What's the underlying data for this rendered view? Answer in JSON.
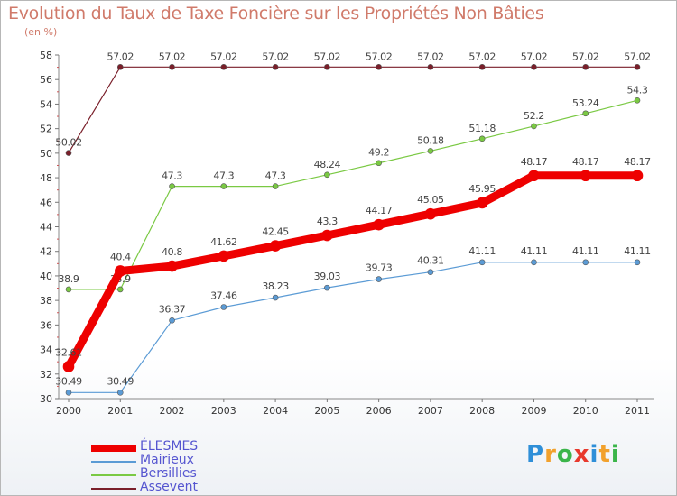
{
  "header": {
    "title": "Evolution du Taux de Taxe Foncière sur les Propriétés Non Bâties",
    "unit": "(en %)"
  },
  "logo": {
    "text": "Proxiti"
  },
  "chart_data": {
    "type": "line",
    "title": "Evolution du Taux de Taxe Foncière sur les Propriétés Non Bâties",
    "ylabel": "(en %)",
    "xlabel": "",
    "x": [
      "2000",
      "2001",
      "2002",
      "2003",
      "2004",
      "2005",
      "2006",
      "2007",
      "2008",
      "2009",
      "2010",
      "2011"
    ],
    "ylim": [
      30,
      58
    ],
    "yticks": [
      30,
      32,
      34,
      36,
      38,
      40,
      42,
      44,
      46,
      48,
      50,
      52,
      54,
      56,
      58
    ],
    "grid": false,
    "legend": "bottom-left",
    "series": [
      {
        "name": "Assevent",
        "color": "#7a1f2a",
        "values": [
          50.02,
          57.02,
          57.02,
          57.02,
          57.02,
          57.02,
          57.02,
          57.02,
          57.02,
          57.02,
          57.02,
          57.02
        ],
        "labels": [
          "50.02",
          "57.02",
          "57.02",
          "57.02",
          "57.02",
          "57.02",
          "57.02",
          "57.02",
          "57.02",
          "57.02",
          "57.02",
          "57.02"
        ]
      },
      {
        "name": "Bersillies",
        "color": "#7ac943",
        "values": [
          38.9,
          38.9,
          47.3,
          47.3,
          47.3,
          48.24,
          49.2,
          50.18,
          51.18,
          52.2,
          53.24,
          54.3
        ],
        "labels": [
          "38.9",
          "38.9",
          "47.3",
          "47.3",
          "47.3",
          "48.24",
          "49.2",
          "50.18",
          "51.18",
          "52.2",
          "53.24",
          "54.3"
        ]
      },
      {
        "name": "Mairieux",
        "color": "#5b9bd5",
        "values": [
          30.49,
          30.49,
          36.37,
          37.46,
          38.23,
          39.03,
          39.73,
          40.31,
          41.11,
          41.11,
          41.11,
          41.11
        ],
        "labels": [
          "30.49",
          "30.49",
          "36.37",
          "37.46",
          "38.23",
          "39.03",
          "39.73",
          "40.31",
          "41.11",
          "41.11",
          "41.11",
          "41.11"
        ]
      },
      {
        "name": "ÉLESMES",
        "color": "#ee0000",
        "values": [
          32.61,
          40.4,
          40.8,
          41.62,
          42.45,
          43.3,
          44.17,
          45.05,
          45.95,
          48.17,
          48.17,
          48.17
        ],
        "labels": [
          "32.61",
          "40.4",
          "40.8",
          "41.62",
          "42.45",
          "43.3",
          "44.17",
          "45.05",
          "45.95",
          "48.17",
          "48.17",
          "48.17"
        ]
      }
    ]
  }
}
